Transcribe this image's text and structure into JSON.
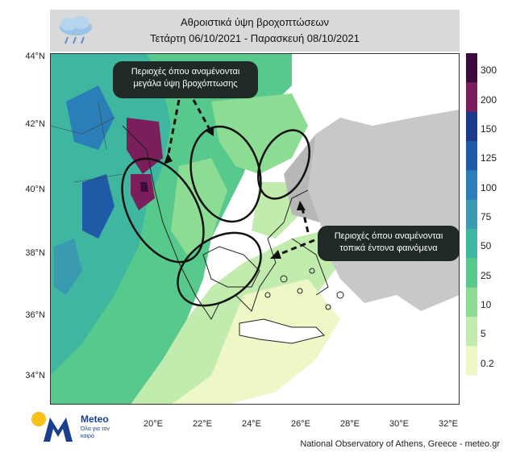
{
  "header": {
    "title": "Αθροιστικά ύψη βροχοπτώσεων",
    "subtitle": "Τετάρτη 06/10/2021 - Παρασκευή 08/10/2021",
    "icon": "rain-cloud-icon"
  },
  "axes": {
    "lat_labels": [
      "44°N",
      "42°N",
      "40°N",
      "38°N",
      "36°N",
      "34°N"
    ],
    "lon_labels": [
      "20°E",
      "22°E",
      "24°E",
      "26°E",
      "28°E",
      "30°E",
      "32°E"
    ]
  },
  "colorbar": {
    "ticks": [
      "300",
      "200",
      "150",
      "125",
      "100",
      "75",
      "50",
      "25",
      "10",
      "5",
      "0.2"
    ],
    "colors": [
      "#3d0a3d",
      "#7a1f5c",
      "#1c3a8a",
      "#1f5aa6",
      "#2a7fb8",
      "#3a9bb0",
      "#3fb7a0",
      "#58c98c",
      "#8ddc93",
      "#c2ecad",
      "#eef7c6",
      "#ffffff"
    ]
  },
  "callouts": {
    "heavy_rain": "Περιοχές όπου αναμένονται μεγάλα ύψη βροχόπτωσης",
    "local_storms": "Περιοχές όπου αναμένονται τοπικά έντονα φαινόμενα"
  },
  "logo": {
    "name": "Meteo",
    "tagline": "Όλα για τον καιρό",
    "colors": {
      "mark": "#1a3f8f",
      "sun": "#f7c31b"
    }
  },
  "credit": "National Observatory of Athens, Greece - meteo.gr"
}
